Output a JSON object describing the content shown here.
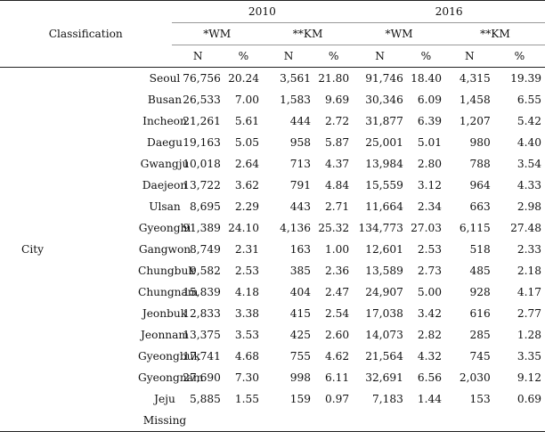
{
  "header": {
    "classification": "Classification",
    "years": [
      "2010",
      "2016"
    ],
    "groups": [
      "*WM",
      "**KM",
      "*WM",
      "**KM"
    ],
    "cols": [
      "N",
      "%",
      "N",
      "%",
      "N",
      "%",
      "N",
      "%"
    ]
  },
  "category": "City",
  "rows": [
    {
      "region": "Seoul",
      "v": [
        "76,756",
        "20.24",
        "3,561",
        "21.80",
        "91,746",
        "18.40",
        "4,315",
        "19.39"
      ]
    },
    {
      "region": "Busan",
      "v": [
        "26,533",
        "7.00",
        "1,583",
        "9.69",
        "30,346",
        "6.09",
        "1,458",
        "6.55"
      ]
    },
    {
      "region": "Incheon",
      "v": [
        "21,261",
        "5.61",
        "444",
        "2.72",
        "31,877",
        "6.39",
        "1,207",
        "5.42"
      ]
    },
    {
      "region": "Daegu",
      "v": [
        "19,163",
        "5.05",
        "958",
        "5.87",
        "25,001",
        "5.01",
        "980",
        "4.40"
      ]
    },
    {
      "region": "Gwangju",
      "v": [
        "10,018",
        "2.64",
        "713",
        "4.37",
        "13,984",
        "2.80",
        "788",
        "3.54"
      ]
    },
    {
      "region": "Daejeon",
      "v": [
        "13,722",
        "3.62",
        "791",
        "4.84",
        "15,559",
        "3.12",
        "964",
        "4.33"
      ]
    },
    {
      "region": "Ulsan",
      "v": [
        "8,695",
        "2.29",
        "443",
        "2.71",
        "11,664",
        "2.34",
        "663",
        "2.98"
      ]
    },
    {
      "region": "Gyeonghi",
      "v": [
        "91,389",
        "24.10",
        "4,136",
        "25.32",
        "134,773",
        "27.03",
        "6,115",
        "27.48"
      ]
    },
    {
      "region": "Gangwon",
      "v": [
        "8,749",
        "2.31",
        "163",
        "1.00",
        "12,601",
        "2.53",
        "518",
        "2.33"
      ]
    },
    {
      "region": "Chungbuk",
      "v": [
        "9,582",
        "2.53",
        "385",
        "2.36",
        "13,589",
        "2.73",
        "485",
        "2.18"
      ]
    },
    {
      "region": "Chungnam",
      "v": [
        "15,839",
        "4.18",
        "404",
        "2.47",
        "24,907",
        "5.00",
        "928",
        "4.17"
      ]
    },
    {
      "region": "Jeonbuk",
      "v": [
        "12,833",
        "3.38",
        "415",
        "2.54",
        "17,038",
        "3.42",
        "616",
        "2.77"
      ]
    },
    {
      "region": "Jeonnam",
      "v": [
        "13,375",
        "3.53",
        "425",
        "2.60",
        "14,073",
        "2.82",
        "285",
        "1.28"
      ]
    },
    {
      "region": "Gyeongbuk",
      "v": [
        "17,741",
        "4.68",
        "755",
        "4.62",
        "21,564",
        "4.32",
        "745",
        "3.35"
      ]
    },
    {
      "region": "Gyeongnam",
      "v": [
        "27,690",
        "7.30",
        "998",
        "6.11",
        "32,691",
        "6.56",
        "2,030",
        "9.12"
      ]
    },
    {
      "region": "Jeju",
      "v": [
        "5,885",
        "1.55",
        "159",
        "0.97",
        "7,183",
        "1.44",
        "153",
        "0.69"
      ]
    },
    {
      "region": "Missing",
      "v": [
        "",
        "",
        "",
        "",
        "",
        "",
        "",
        ""
      ]
    }
  ]
}
